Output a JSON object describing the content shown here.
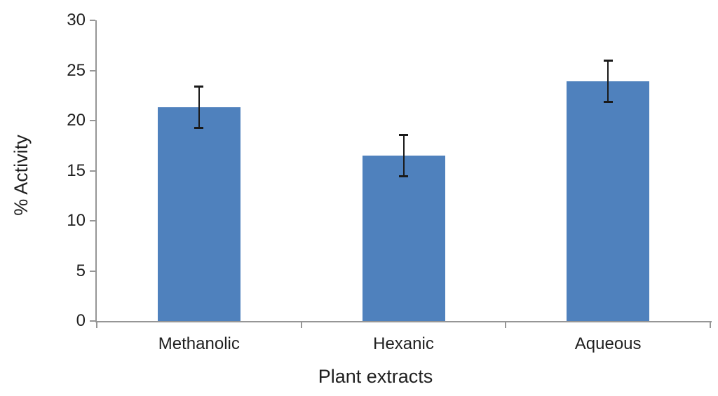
{
  "chart_data": {
    "type": "bar",
    "title": "",
    "categories": [
      "Methanolic",
      "Hexanic",
      "Aqueous"
    ],
    "values": [
      21.3,
      16.5,
      23.9
    ],
    "error_bars": [
      2.1,
      2.1,
      2.1
    ],
    "xlabel": "Plant extracts",
    "ylabel": "% Activity",
    "ylim": [
      0,
      30
    ],
    "ytick_step": 5,
    "ytick_labels": [
      "0",
      "5",
      "10",
      "15",
      "20",
      "25",
      "30"
    ],
    "grid": false,
    "legend": "none",
    "colors": {
      "bar": "#4F81BD",
      "axis": "#969696",
      "error_bar": "#1a1a1a",
      "text": "#1f1f1f",
      "background": "#ffffff"
    }
  }
}
